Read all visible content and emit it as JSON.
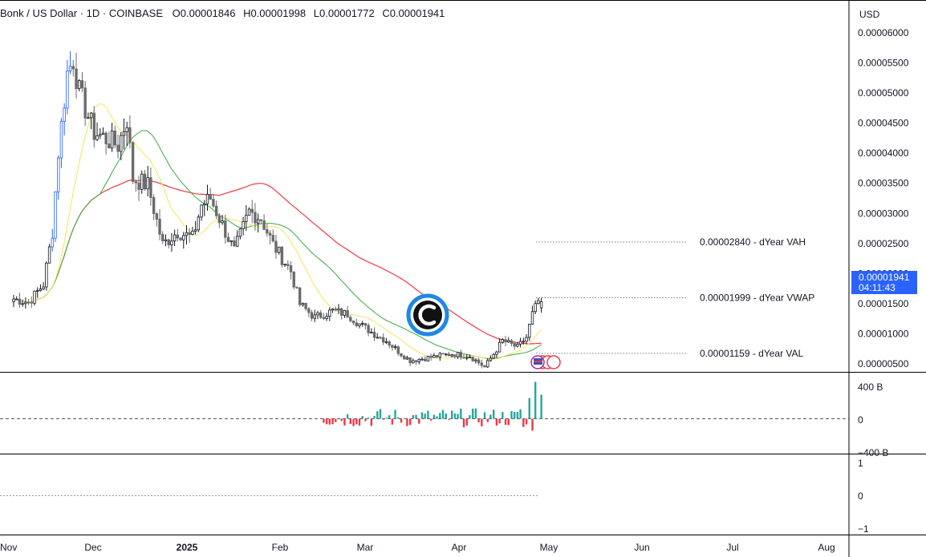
{
  "header": {
    "symbol": "Bonk / US Dollar · 1D · COINBASE",
    "open_label": "O",
    "open": "0.00001846",
    "high_label": "H",
    "high": "0.00001998",
    "low_label": "L",
    "low": "0.00001772",
    "close_label": "C",
    "close": "0.00001941"
  },
  "axis_currency": "USD",
  "last_price": {
    "value": "0.00001941",
    "countdown": "04:11:43"
  },
  "colors": {
    "up": "#131722",
    "down": "#6b6b6b",
    "blue_candle": "#2962ff",
    "vwap_line": "#f23645",
    "ma_fast": "#f5e76a",
    "ma_slow": "#4caf50",
    "hist_up": "#26a69a",
    "hist_down": "#f23645",
    "accent": "#2962ff"
  },
  "chart_data": {
    "type": "candlestick",
    "price_axis": {
      "ylim": [
        3.5e-06,
        6.3e-06
      ],
      "ticks": [
        "0.00006000",
        "0.00005500",
        "0.00005000",
        "0.00004500",
        "0.00004000",
        "0.00003500",
        "0.00003000",
        "0.00002500",
        "0.00002000",
        "0.00001500",
        "0.00001000",
        "0.00000500"
      ]
    },
    "time_axis": {
      "labels": [
        "Nov",
        "Dec",
        "2025",
        "Feb",
        "Mar",
        "Apr",
        "May",
        "Jun",
        "Jul",
        "Aug"
      ]
    },
    "levels": [
      {
        "name": "dYear VAH",
        "value": 2.84e-05,
        "label": "0.00002840 - dYear VAH"
      },
      {
        "name": "dYear VWAP",
        "value": 1.999e-05,
        "label": "0.00001999 - dYear VWAP"
      },
      {
        "name": "dYear VAL",
        "value": 1.159e-05,
        "label": "0.00001159 - dYear VAL"
      }
    ],
    "anchors": [
      [
        "2024-10-31",
        1.98e-05
      ],
      [
        "2024-11-05",
        1.93e-05
      ],
      [
        "2024-11-10",
        2.2e-05
      ],
      [
        "2024-11-13",
        3e-05
      ],
      [
        "2024-11-15",
        4.2e-05
      ],
      [
        "2024-11-18",
        5.4e-05
      ],
      [
        "2024-11-20",
        5.6e-05
      ],
      [
        "2024-11-22",
        5.1e-05
      ],
      [
        "2024-11-27",
        4.5e-05
      ],
      [
        "2024-12-01",
        4.4e-05
      ],
      [
        "2024-12-05",
        4.3e-05
      ],
      [
        "2024-12-08",
        4.7e-05
      ],
      [
        "2024-12-10",
        3.8e-05
      ],
      [
        "2024-12-15",
        3.7e-05
      ],
      [
        "2024-12-20",
        2.8e-05
      ],
      [
        "2024-12-25",
        3e-05
      ],
      [
        "2024-12-30",
        2.9e-05
      ],
      [
        "2025-01-02",
        3.4e-05
      ],
      [
        "2025-01-05",
        3.5e-05
      ],
      [
        "2025-01-09",
        3.1e-05
      ],
      [
        "2025-01-13",
        2.7e-05
      ],
      [
        "2025-01-18",
        3.3e-05
      ],
      [
        "2025-01-22",
        3.2e-05
      ],
      [
        "2025-01-26",
        2.8e-05
      ],
      [
        "2025-02-01",
        2.4e-05
      ],
      [
        "2025-02-04",
        1.9e-05
      ],
      [
        "2025-02-09",
        1.7e-05
      ],
      [
        "2025-02-15",
        1.8e-05
      ],
      [
        "2025-02-20",
        1.75e-05
      ],
      [
        "2025-02-24",
        1.6e-05
      ],
      [
        "2025-03-01",
        1.45e-05
      ],
      [
        "2025-03-05",
        1.35e-05
      ],
      [
        "2025-03-10",
        1.15e-05
      ],
      [
        "2025-03-13",
        1.05e-05
      ],
      [
        "2025-03-20",
        1.1e-05
      ],
      [
        "2025-03-27",
        1.15e-05
      ],
      [
        "2025-04-02",
        1.12e-05
      ],
      [
        "2025-04-07",
        9.5e-06
      ],
      [
        "2025-04-10",
        1.15e-05
      ],
      [
        "2025-04-13",
        1.35e-05
      ],
      [
        "2025-04-18",
        1.25e-05
      ],
      [
        "2025-04-21",
        1.4e-05
      ],
      [
        "2025-04-23",
        1.75e-05
      ],
      [
        "2025-04-25",
        1.95e-05
      ],
      [
        "2025-04-26",
        1.94e-05
      ]
    ],
    "oscillator": {
      "ticks": [
        "400 B",
        "0",
        "−400 B"
      ]
    },
    "lower_pane": {
      "ticks": [
        "1",
        "0",
        "−1"
      ]
    }
  }
}
